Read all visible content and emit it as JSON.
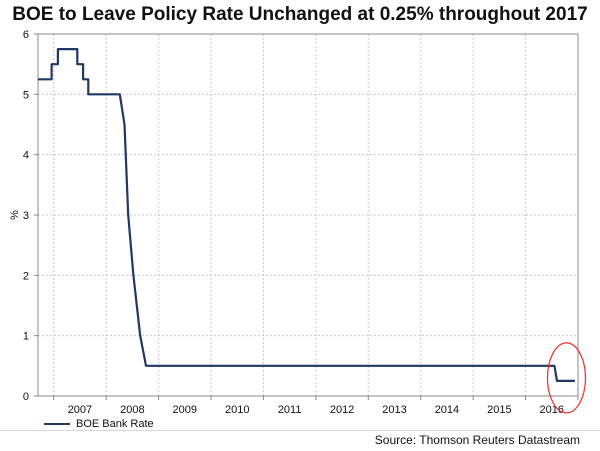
{
  "chart_data": {
    "type": "line",
    "title": "BOE to Leave Policy Rate Unchanged at 0.25% throughout 2017",
    "ylabel": "%",
    "xlabel": "",
    "ylim": [
      0,
      6
    ],
    "yticks": [
      "0",
      "1",
      "2",
      "3",
      "4",
      "5",
      "6"
    ],
    "xlim": [
      2006.7,
      2017.0
    ],
    "xticks": [
      "2007",
      "2008",
      "2009",
      "2010",
      "2011",
      "2012",
      "2013",
      "2014",
      "2015",
      "2016"
    ],
    "grid": true,
    "legend_position": "bottom-left",
    "series": [
      {
        "name": "BOE Bank Rate",
        "color": "#1f3864",
        "points": [
          [
            2006.7,
            5.25
          ],
          [
            2006.96,
            5.25
          ],
          [
            2006.96,
            5.5
          ],
          [
            2007.08,
            5.5
          ],
          [
            2007.08,
            5.75
          ],
          [
            2007.45,
            5.75
          ],
          [
            2007.45,
            5.5
          ],
          [
            2007.56,
            5.5
          ],
          [
            2007.56,
            5.25
          ],
          [
            2007.66,
            5.25
          ],
          [
            2007.66,
            5.0
          ],
          [
            2008.26,
            5.0
          ],
          [
            2008.35,
            4.5
          ],
          [
            2008.42,
            3.0
          ],
          [
            2008.52,
            2.0
          ],
          [
            2008.65,
            1.0
          ],
          [
            2008.76,
            0.5
          ],
          [
            2016.55,
            0.5
          ],
          [
            2016.6,
            0.25
          ],
          [
            2016.94,
            0.25
          ]
        ]
      }
    ],
    "annotations": [
      {
        "type": "ellipse",
        "color": "#e8302a",
        "x": 2016.78,
        "y": 0.3,
        "note": "highlight of rate cut"
      }
    ]
  },
  "source": "Source: Thomson Reuters Datastream"
}
